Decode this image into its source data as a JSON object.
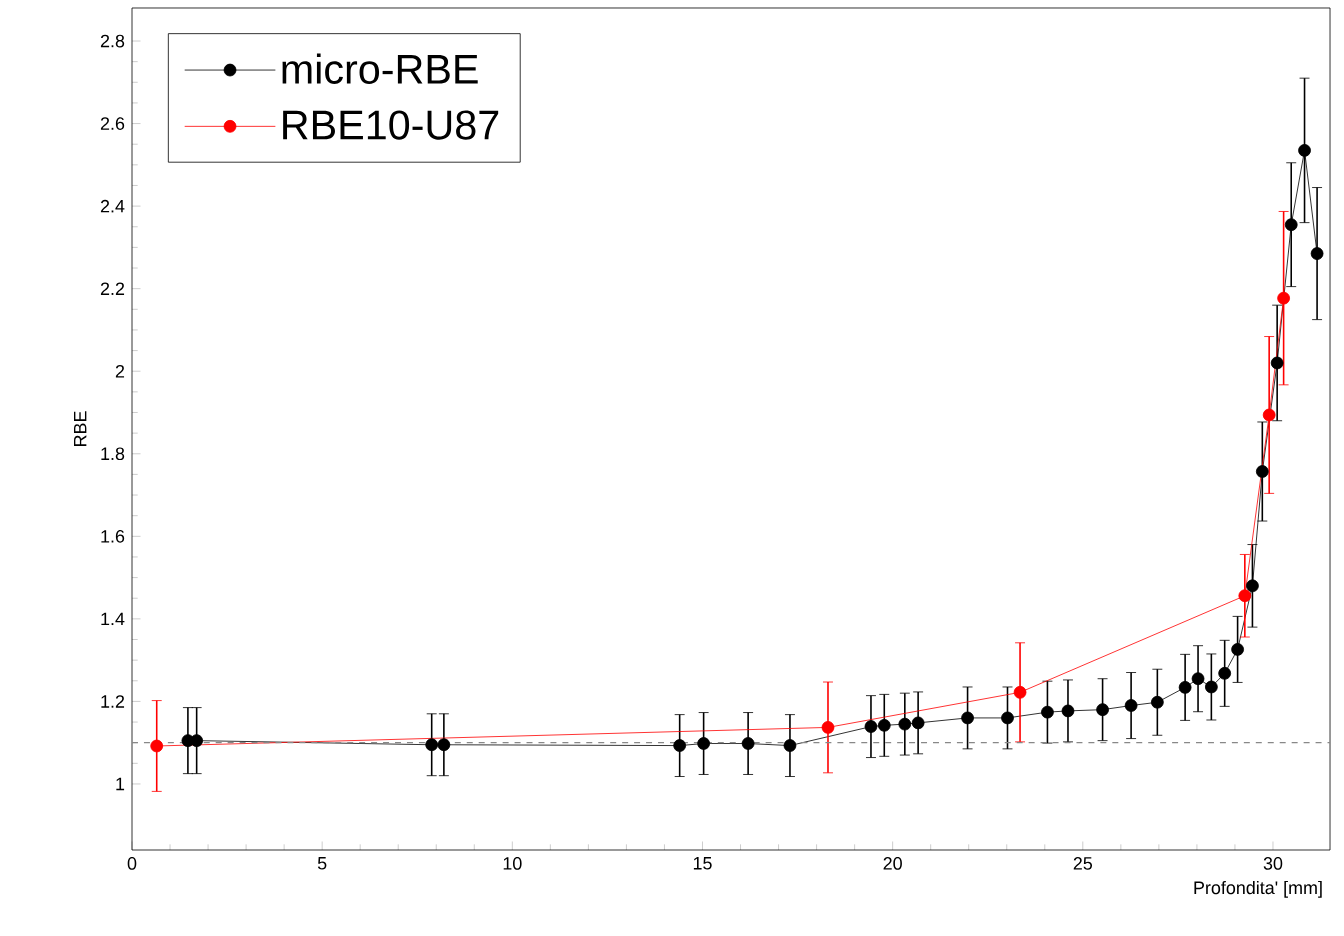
{
  "chart_data": {
    "type": "line",
    "xlabel": "Profondita' [mm]",
    "ylabel": "RBE",
    "xlim": [
      0,
      31.5
    ],
    "ylim": [
      0.84,
      2.88
    ],
    "xticks": [
      0,
      5,
      10,
      15,
      20,
      25,
      30
    ],
    "yticks": [
      1,
      1.2,
      1.4,
      1.6,
      1.8,
      2,
      2.2,
      2.4,
      2.6,
      2.8
    ],
    "legend": "top left",
    "marker": "circle",
    "line_style": "solid",
    "ref_lines": [
      {
        "axis": "y",
        "value": 1.1,
        "color": "#888888",
        "line_style": "dashed"
      }
    ],
    "series": [
      {
        "name": "micro-RBE",
        "color": "#000000",
        "x": [
          1.47,
          1.7,
          7.88,
          8.2,
          14.4,
          15.03,
          16.2,
          17.3,
          19.43,
          19.78,
          20.32,
          20.67,
          21.97,
          23.02,
          24.07,
          24.61,
          25.52,
          26.27,
          26.96,
          27.69,
          28.03,
          28.38,
          28.73,
          29.07,
          29.46,
          29.72,
          30.11,
          30.48,
          30.83,
          31.16
        ],
        "values": [
          1.105,
          1.105,
          1.095,
          1.095,
          1.093,
          1.098,
          1.098,
          1.093,
          1.139,
          1.142,
          1.145,
          1.148,
          1.16,
          1.16,
          1.174,
          1.177,
          1.18,
          1.19,
          1.198,
          1.234,
          1.255,
          1.235,
          1.268,
          1.326,
          1.48,
          1.757,
          2.02,
          2.355,
          2.535,
          2.285
        ],
        "errors": [
          0.08,
          0.08,
          0.075,
          0.075,
          0.075,
          0.075,
          0.075,
          0.075,
          0.075,
          0.075,
          0.075,
          0.075,
          0.075,
          0.075,
          0.075,
          0.075,
          0.075,
          0.08,
          0.08,
          0.08,
          0.08,
          0.08,
          0.08,
          0.08,
          0.1,
          0.12,
          0.14,
          0.15,
          0.175,
          0.16
        ]
      },
      {
        "name": "RBE10-U87",
        "color": "#ff0000",
        "x": [
          0.65,
          18.3,
          23.35,
          29.26,
          29.9,
          30.28
        ],
        "values": [
          1.092,
          1.137,
          1.222,
          1.456,
          1.894,
          2.177
        ],
        "errors": [
          0.11,
          0.11,
          0.12,
          0.1,
          0.19,
          0.21
        ]
      }
    ]
  }
}
